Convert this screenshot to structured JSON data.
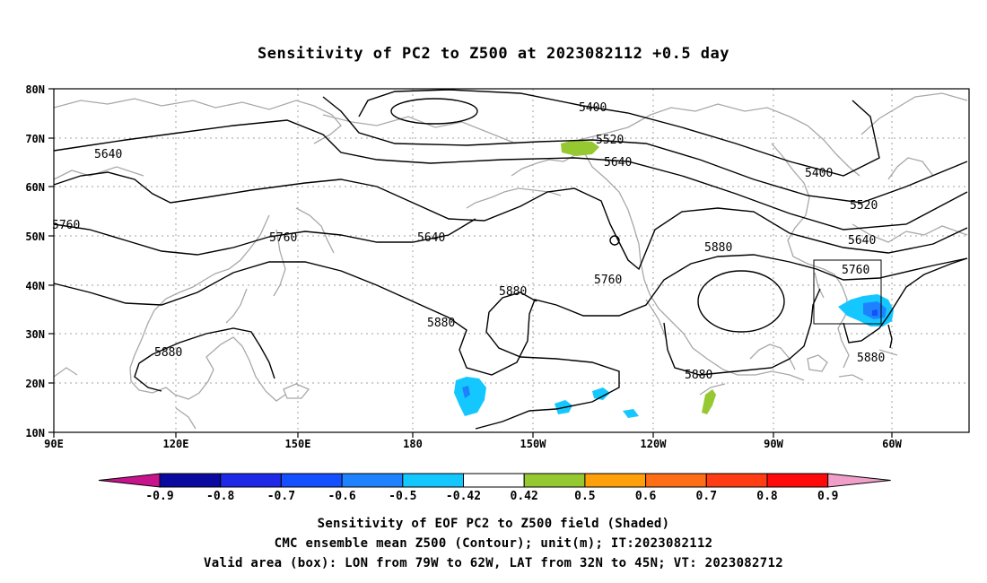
{
  "title": "Sensitivity of PC2 to Z500 at 2023082112 +0.5 day",
  "captions": {
    "line1": "Sensitivity of EOF PC2 to Z500 field (Shaded)",
    "line2": "CMC ensemble mean Z500 (Contour); unit(m); IT:2023082112",
    "line3": "Valid area (box): LON from 79W to 62W, LAT from 32N to 45N; VT: 2023082712"
  },
  "axes": {
    "lat_labels": [
      "80N",
      "70N",
      "60N",
      "50N",
      "40N",
      "30N",
      "20N",
      "10N"
    ],
    "lon_labels": [
      "90E",
      "120E",
      "150E",
      "180",
      "150W",
      "120W",
      "90W",
      "60W"
    ]
  },
  "contour_labels": [
    {
      "text": "5400"
    },
    {
      "text": "5400"
    },
    {
      "text": "5520"
    },
    {
      "text": "5520"
    },
    {
      "text": "5640"
    },
    {
      "text": "5640"
    },
    {
      "text": "5640"
    },
    {
      "text": "5640"
    },
    {
      "text": "5760"
    },
    {
      "text": "5760"
    },
    {
      "text": "5760"
    },
    {
      "text": "5760"
    },
    {
      "text": "5880"
    },
    {
      "text": "5880"
    },
    {
      "text": "5880"
    },
    {
      "text": "5880"
    },
    {
      "text": "5880"
    },
    {
      "text": "5880"
    }
  ],
  "colorbar": {
    "labels": [
      "-0.9",
      "-0.8",
      "-0.7",
      "-0.6",
      "-0.5",
      "-0.42",
      "0.42",
      "0.5",
      "0.6",
      "0.7",
      "0.8",
      "0.9"
    ],
    "colors": [
      "#0a0aa0",
      "#1e28e6",
      "#1450ff",
      "#1e82ff",
      "#14c8ff",
      "#ffffff",
      "#96c832",
      "#ffa00a",
      "#ff6e14",
      "#ff3c14",
      "#ff0a0a"
    ],
    "low_end_color": "#c8148c",
    "high_end_color": "#f0a0c8"
  },
  "valid_box": {
    "lon_min": -79,
    "lon_max": -62,
    "lat_min": 32,
    "lat_max": 45
  }
}
